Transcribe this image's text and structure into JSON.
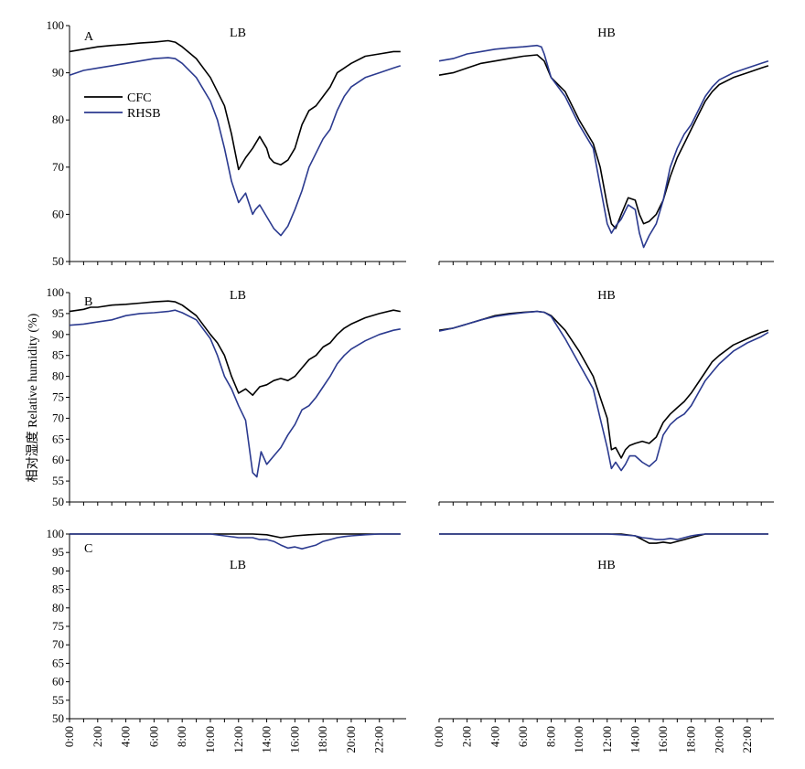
{
  "figure": {
    "ylabel": "相对湿度 Relative humidity (%)",
    "x_ticks": [
      "0:00",
      "2:00",
      "4:00",
      "6:00",
      "8:00",
      "10:00",
      "12:00",
      "14:00",
      "16:00",
      "18:00",
      "20:00",
      "22:00"
    ],
    "colors": {
      "CFC": "#000000",
      "RHSB": "#2b3a8f"
    },
    "legend": [
      {
        "key": "CFC",
        "label": "CFC"
      },
      {
        "key": "RHSB",
        "label": "RHSB"
      }
    ]
  },
  "chart_data": [
    {
      "type": "line",
      "panel": "A",
      "ylim": [
        50,
        100
      ],
      "yticks": [
        50,
        60,
        70,
        80,
        90,
        100
      ],
      "subplots": [
        {
          "title": "LB",
          "series": [
            {
              "name": "CFC",
              "x": [
                0,
                1,
                2,
                3,
                4,
                5,
                6,
                7,
                7.5,
                8,
                9,
                10,
                10.5,
                11,
                11.5,
                12,
                12.5,
                13,
                13.5,
                14,
                14.2,
                14.5,
                15,
                15.5,
                16,
                16.5,
                17,
                17.5,
                18,
                18.5,
                19,
                19.5,
                20,
                21,
                22,
                23,
                23.5
              ],
              "y": [
                94.5,
                95,
                95.5,
                95.8,
                96,
                96.3,
                96.5,
                96.8,
                96.5,
                95.5,
                93,
                89,
                86,
                83,
                77,
                69.5,
                72,
                74,
                76.5,
                74,
                72,
                71,
                70.5,
                71.5,
                74,
                79,
                82,
                83,
                85,
                87,
                90,
                91,
                92,
                93.5,
                94,
                94.5,
                94.5
              ]
            },
            {
              "name": "RHSB",
              "x": [
                0,
                1,
                2,
                3,
                4,
                5,
                6,
                7,
                7.5,
                8,
                9,
                10,
                10.5,
                11,
                11.5,
                12,
                12.5,
                13,
                13.2,
                13.5,
                14,
                14.5,
                15,
                15.5,
                16,
                16.5,
                17,
                17.5,
                18,
                18.5,
                19,
                19.5,
                20,
                21,
                22,
                23,
                23.5
              ],
              "y": [
                89.5,
                90.5,
                91,
                91.5,
                92,
                92.5,
                93,
                93.2,
                93,
                92,
                89,
                84,
                80,
                74,
                67,
                62.5,
                64.5,
                60,
                61,
                62,
                59.5,
                57,
                55.5,
                57.5,
                61,
                65,
                70,
                73,
                76,
                78,
                82,
                85,
                87,
                89,
                90,
                91,
                91.5
              ]
            }
          ]
        },
        {
          "title": "HB",
          "series": [
            {
              "name": "CFC",
              "x": [
                0,
                1,
                2,
                3,
                4,
                5,
                6,
                7,
                7.5,
                8,
                9,
                10,
                11,
                11.5,
                12,
                12.3,
                12.6,
                13,
                13.5,
                14,
                14.3,
                14.6,
                15,
                15.5,
                16,
                16.5,
                17,
                17.5,
                18,
                18.5,
                19,
                19.5,
                20,
                21,
                22,
                23,
                23.5
              ],
              "y": [
                89.5,
                90,
                91,
                92,
                92.5,
                93,
                93.5,
                93.8,
                92.5,
                89,
                86,
                80,
                75,
                70,
                62,
                58,
                57,
                60,
                63.5,
                63,
                60,
                58,
                58.5,
                60,
                63,
                68,
                72,
                75,
                78,
                81,
                84,
                86,
                87.5,
                89,
                90,
                91,
                91.5
              ]
            },
            {
              "name": "RHSB",
              "x": [
                0,
                1,
                2,
                3,
                4,
                5,
                6,
                7,
                7.3,
                7.5,
                8,
                9,
                10,
                11,
                11.5,
                12,
                12.3,
                12.6,
                13,
                13.5,
                14,
                14.3,
                14.6,
                15,
                15.5,
                16,
                16.5,
                17,
                17.5,
                18,
                18.5,
                19,
                19.5,
                20,
                21,
                22,
                23,
                23.5
              ],
              "y": [
                92.5,
                93,
                94,
                94.5,
                95,
                95.3,
                95.5,
                95.8,
                95.5,
                94,
                89,
                85,
                79,
                74,
                66,
                58,
                56,
                57.5,
                59,
                62,
                61,
                56,
                53,
                55.5,
                58,
                63,
                70,
                74,
                77,
                79,
                82,
                85,
                87,
                88.5,
                90,
                91,
                92,
                92.5
              ]
            }
          ]
        }
      ]
    },
    {
      "type": "line",
      "panel": "B",
      "ylim": [
        50,
        100
      ],
      "yticks": [
        50,
        55,
        60,
        65,
        70,
        75,
        80,
        85,
        90,
        95,
        100
      ],
      "subplots": [
        {
          "title": "LB",
          "series": [
            {
              "name": "CFC",
              "x": [
                0,
                1,
                1.5,
                2,
                3,
                4,
                5,
                6,
                7,
                7.5,
                8,
                9,
                10,
                10.5,
                11,
                11.5,
                12,
                12.5,
                13,
                13.5,
                14,
                14.5,
                15,
                15.5,
                16,
                16.5,
                17,
                17.5,
                18,
                18.5,
                19,
                19.5,
                20,
                21,
                22,
                23,
                23.5
              ],
              "y": [
                95.5,
                96,
                96.5,
                96.5,
                97,
                97.2,
                97.5,
                97.8,
                98,
                97.8,
                97,
                94.5,
                90,
                88,
                85,
                80,
                76,
                77,
                75.5,
                77.5,
                78,
                79,
                79.5,
                79,
                80,
                82,
                84,
                85,
                87,
                88,
                90,
                91.5,
                92.5,
                94,
                95,
                95.8,
                95.5
              ]
            },
            {
              "name": "RHSB",
              "x": [
                0,
                1,
                2,
                3,
                4,
                5,
                6,
                7,
                7.5,
                8,
                9,
                10,
                10.5,
                11,
                11.5,
                12,
                12.5,
                13,
                13.3,
                13.6,
                14,
                14.5,
                15,
                15.5,
                16,
                16.5,
                17,
                17.5,
                18,
                18.5,
                19,
                19.5,
                20,
                21,
                22,
                23,
                23.5
              ],
              "y": [
                92.2,
                92.5,
                93,
                93.5,
                94.5,
                95,
                95.2,
                95.5,
                95.8,
                95.2,
                93.5,
                89,
                85,
                80,
                77,
                73,
                69.5,
                57,
                56,
                62,
                59,
                61,
                63,
                66,
                68.5,
                72,
                73,
                75,
                77.5,
                80,
                83,
                85,
                86.5,
                88.5,
                90,
                91,
                91.3
              ]
            }
          ]
        },
        {
          "title": "HB",
          "series": [
            {
              "name": "CFC",
              "x": [
                0,
                1,
                2,
                3,
                4,
                5,
                6,
                7,
                7.5,
                8,
                9,
                10,
                11,
                11.5,
                12,
                12.3,
                12.6,
                13,
                13.3,
                13.6,
                14,
                14.5,
                15,
                15.5,
                16,
                16.5,
                17,
                17.5,
                18,
                18.5,
                19,
                19.5,
                20,
                21,
                22,
                23,
                23.5
              ],
              "y": [
                91,
                91.5,
                92.5,
                93.5,
                94.5,
                95,
                95.3,
                95.5,
                95.3,
                94.5,
                91,
                86,
                80,
                75,
                70,
                62.5,
                63,
                60.5,
                62.5,
                63.5,
                64,
                64.5,
                64,
                65.5,
                69,
                71,
                72.5,
                74,
                76,
                78.5,
                81,
                83.5,
                85,
                87.5,
                89,
                90.5,
                91
              ]
            },
            {
              "name": "RHSB",
              "x": [
                0,
                1,
                2,
                3,
                4,
                5,
                6,
                7,
                7.5,
                8,
                9,
                10,
                11,
                11.5,
                12,
                12.3,
                12.6,
                13,
                13.3,
                13.6,
                14,
                14.5,
                15,
                15.5,
                16,
                16.5,
                17,
                17.5,
                18,
                18.5,
                19,
                19.5,
                20,
                21,
                22,
                23,
                23.5
              ],
              "y": [
                90.8,
                91.5,
                92.5,
                93.5,
                94.3,
                94.8,
                95.2,
                95.5,
                95.3,
                94.3,
                89,
                83,
                77,
                70,
                63,
                58,
                59.5,
                57.5,
                59,
                61,
                61,
                59.5,
                58.5,
                60,
                66,
                68.5,
                70,
                71,
                73,
                76,
                79,
                81,
                83,
                86,
                88,
                89.5,
                90.5
              ]
            }
          ]
        }
      ]
    },
    {
      "type": "line",
      "panel": "C",
      "ylim": [
        50,
        100
      ],
      "yticks": [
        50,
        55,
        60,
        65,
        70,
        75,
        80,
        85,
        90,
        95,
        100
      ],
      "subplots": [
        {
          "title": "LB",
          "series": [
            {
              "name": "CFC",
              "x": [
                0,
                10,
                11,
                12,
                13,
                14,
                15,
                16,
                17,
                18,
                19,
                20,
                21,
                22,
                23,
                23.5
              ],
              "y": [
                100,
                100,
                100,
                100,
                100,
                99.8,
                99,
                99.5,
                99.8,
                100,
                100,
                100,
                100,
                100,
                100,
                100
              ]
            },
            {
              "name": "RHSB",
              "x": [
                0,
                10,
                11,
                12,
                13,
                13.5,
                14,
                14.5,
                15,
                15.5,
                16,
                16.5,
                17,
                17.5,
                18,
                18.5,
                19,
                19.5,
                20,
                21,
                22,
                23,
                23.5
              ],
              "y": [
                100,
                100,
                99.5,
                99,
                99,
                98.5,
                98.5,
                98,
                97,
                96.2,
                96.5,
                96,
                96.5,
                97,
                98,
                98.5,
                99,
                99.3,
                99.5,
                99.8,
                100,
                100,
                100
              ]
            }
          ]
        },
        {
          "title": "HB",
          "series": [
            {
              "name": "CFC",
              "x": [
                0,
                12,
                13,
                14,
                14.5,
                15,
                15.5,
                16,
                16.5,
                17,
                17.5,
                18,
                18.5,
                19,
                20,
                21,
                22,
                23,
                23.5
              ],
              "y": [
                100,
                100,
                100,
                99.5,
                98.5,
                97.5,
                97.5,
                97.8,
                97.5,
                98,
                98.5,
                99,
                99.5,
                100,
                100,
                100,
                100,
                100,
                100
              ]
            },
            {
              "name": "RHSB",
              "x": [
                0,
                12,
                13,
                14,
                14.5,
                15,
                15.5,
                16,
                16.5,
                17,
                17.5,
                18,
                18.5,
                19,
                20,
                21,
                22,
                23,
                23.5
              ],
              "y": [
                100,
                100,
                99.8,
                99.5,
                99,
                98.8,
                98.5,
                98.5,
                98.8,
                98.5,
                99,
                99.5,
                99.8,
                100,
                100,
                100,
                100,
                100,
                100
              ]
            }
          ]
        }
      ]
    }
  ]
}
